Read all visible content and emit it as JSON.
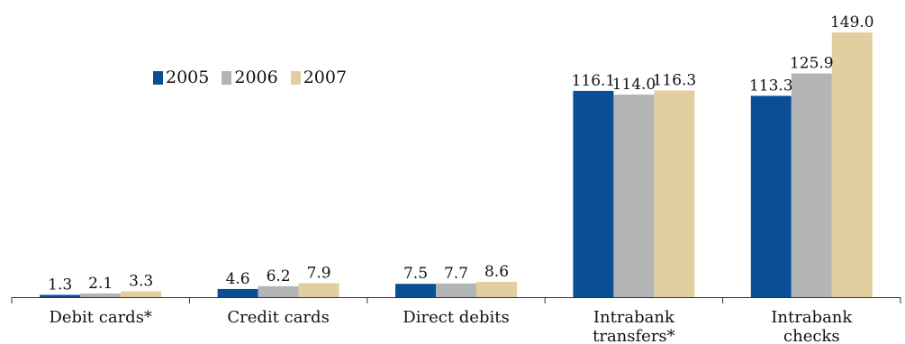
{
  "chart_data": {
    "type": "bar",
    "categories": [
      "Debit cards*",
      "Credit cards",
      "Direct debits",
      "Intrabank transfers*",
      "Intrabank checks"
    ],
    "category_label_lines": [
      [
        "Debit cards*"
      ],
      [
        "Credit cards"
      ],
      [
        "Direct debits"
      ],
      [
        "Intrabank",
        "transfers*"
      ],
      [
        "Intrabank",
        "checks"
      ]
    ],
    "series": [
      {
        "name": "2005",
        "color": "#0a4f96",
        "values": [
          1.3,
          4.6,
          7.5,
          116.1,
          113.3
        ],
        "labels": [
          "1.3",
          "4.6",
          "7.5",
          "116.1",
          "113.3"
        ]
      },
      {
        "name": "2006",
        "color": "#b3b4b6",
        "values": [
          2.1,
          6.2,
          7.7,
          114.0,
          125.9
        ],
        "labels": [
          "2.1",
          "6.2",
          "7.7",
          "114.0",
          "125.9"
        ]
      },
      {
        "name": "2007",
        "color": "#e2cf9f",
        "values": [
          3.3,
          7.9,
          8.6,
          116.3,
          149.0
        ],
        "labels": [
          "3.3",
          "7.9",
          "8.6",
          "116.3",
          "149.0"
        ]
      }
    ],
    "title": "",
    "xlabel": "",
    "ylabel": "",
    "ylim": [
      0,
      149.0
    ],
    "grid": false,
    "legend_position": "top-left"
  }
}
